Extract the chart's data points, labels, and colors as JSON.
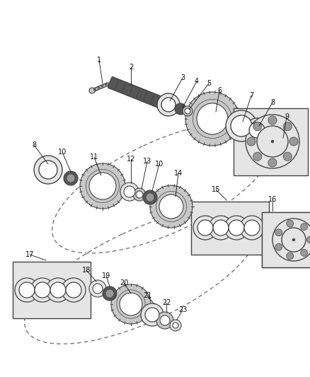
{
  "bg": "#ffffff",
  "fw": 4.38,
  "fh": 5.33,
  "dpi": 100,
  "gray_dark": "#444444",
  "gray_mid": "#777777",
  "gray_light": "#aaaaaa",
  "fill_dark": "#555555",
  "fill_mid": "#999999",
  "fill_light": "#c8c8c8",
  "fill_vlight": "#e5e5e5",
  "black": "#111111",
  "white": "#ffffff"
}
